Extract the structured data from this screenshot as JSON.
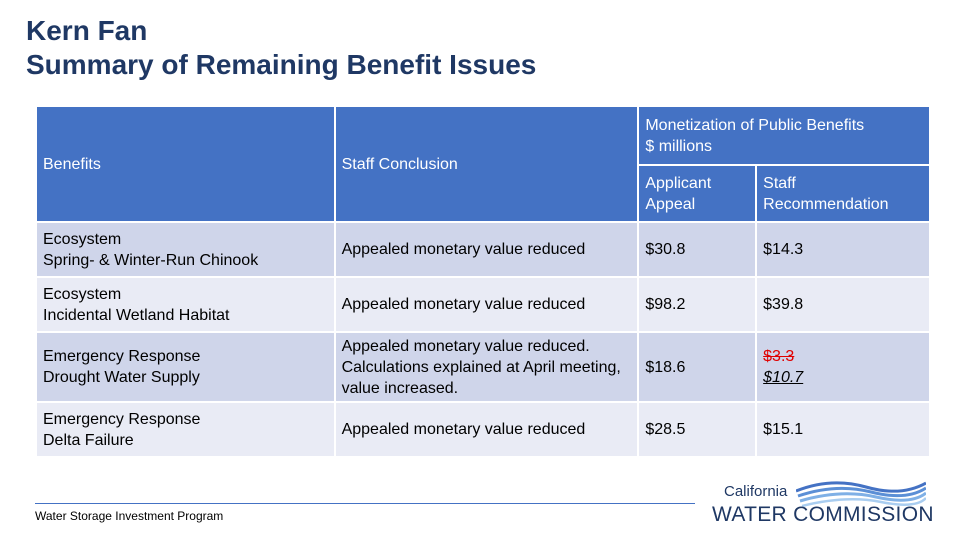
{
  "title": {
    "line1": "Kern Fan",
    "line2": "Summary of Remaining Benefit Issues"
  },
  "table": {
    "headers": {
      "benefits": "Benefits",
      "staff_conclusion": "Staff Conclusion",
      "monetization_line1": "Monetization of Public Benefits",
      "monetization_line2": "$ millions",
      "applicant_appeal_line1": "Applicant",
      "applicant_appeal_line2": "Appeal",
      "staff_rec_line1": "Staff",
      "staff_rec_line2": "Recommendation"
    },
    "rows": [
      {
        "benefit_line1": "Ecosystem",
        "benefit_line2": "Spring- & Winter-Run Chinook",
        "conclusion": "Appealed monetary value reduced",
        "applicant_appeal": "$30.8",
        "staff_recommendation": "$14.3"
      },
      {
        "benefit_line1": "Ecosystem",
        "benefit_line2": "Incidental Wetland Habitat",
        "conclusion": "Appealed monetary value reduced",
        "applicant_appeal": "$98.2",
        "staff_recommendation": "$39.8"
      },
      {
        "benefit_line1": "Emergency Response",
        "benefit_line2": "Drought Water Supply",
        "conclusion": "Appealed monetary value reduced. Calculations explained at April meeting, value increased.",
        "applicant_appeal": "$18.6",
        "staff_recommendation_previous": "$3.3",
        "staff_recommendation": "$10.7"
      },
      {
        "benefit_line1": "Emergency Response",
        "benefit_line2": "Delta Failure",
        "conclusion": "Appealed monetary value reduced",
        "applicant_appeal": "$28.5",
        "staff_recommendation": "$15.1"
      }
    ]
  },
  "footer": {
    "program": "Water Storage Investment Program"
  },
  "logo": {
    "top_word": "California",
    "main_text": "WATER COMMISSION"
  },
  "colors": {
    "title": "#1f3864",
    "header_bg": "#4472c4",
    "row_bg_dark": "#cfd5ea",
    "row_bg_light": "#e9ebf5",
    "strike_red": "#e00000"
  }
}
